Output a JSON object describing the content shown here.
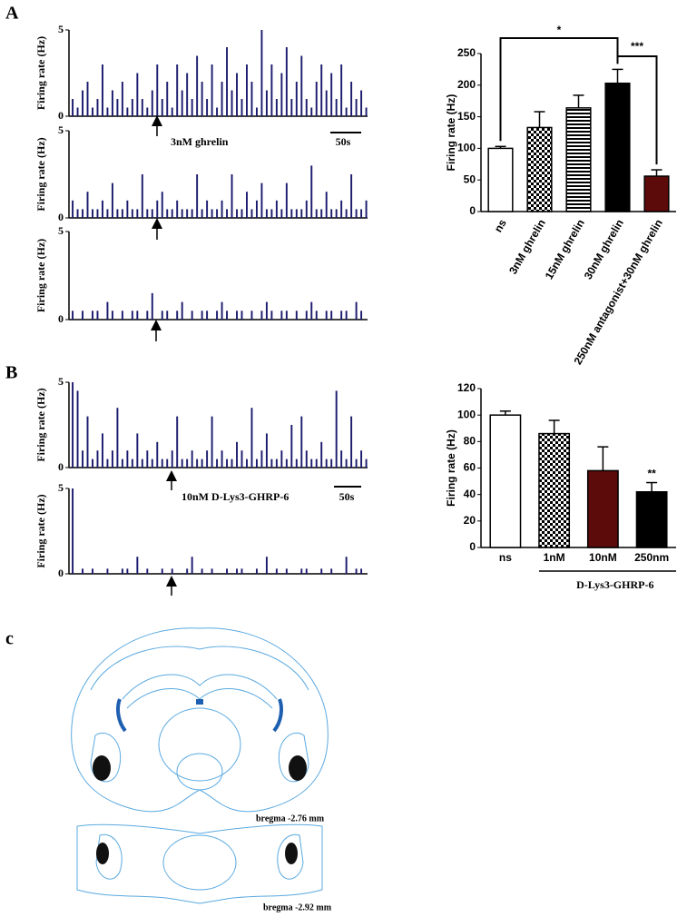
{
  "chart_data": [
    {
      "type": "rate",
      "ylabel": "Firing rate (Hz)",
      "ylim": [
        0,
        5
      ],
      "yticks": [
        0,
        5
      ],
      "color": "#1b1b6e",
      "annotations": [
        "3nM ghrelin",
        "50s"
      ],
      "values": [
        1,
        0.5,
        1.5,
        2,
        0.5,
        1,
        3,
        0.5,
        1.5,
        1,
        2,
        0.5,
        1,
        2.5,
        1,
        0.5,
        1.5,
        3,
        1,
        2,
        0.5,
        3,
        1.5,
        2.5,
        1,
        3.5,
        2,
        1,
        3,
        0.5,
        2,
        4,
        1.5,
        2.5,
        1,
        3,
        2,
        0.5,
        5,
        1.5,
        3,
        1,
        2.5,
        4,
        1,
        2,
        3.5,
        1,
        0.5,
        2,
        3,
        1.5,
        2.5,
        1,
        3,
        0.5,
        2,
        1,
        1.5,
        0.5
      ]
    },
    {
      "type": "rate",
      "ylabel": "Firing rate (Hz)",
      "ylim": [
        0,
        5
      ],
      "yticks": [
        0,
        5
      ],
      "color": "#1b1b6e",
      "values": [
        1,
        0.5,
        0.5,
        1.5,
        0.5,
        0.5,
        1,
        0.5,
        2,
        0.5,
        0.5,
        1,
        0.5,
        0.5,
        2.5,
        0.5,
        0.5,
        1,
        1.5,
        0.5,
        0.5,
        1,
        0.5,
        0.5,
        0.5,
        2.5,
        0.5,
        1,
        0.5,
        0.5,
        1,
        0.5,
        2.5,
        0.5,
        0.5,
        1.5,
        0.5,
        1,
        2,
        0.5,
        0.5,
        1,
        0.5,
        2,
        0.5,
        0.5,
        0.5,
        1,
        3,
        0.5,
        0.5,
        1.5,
        0.5,
        0.5,
        1,
        0.5,
        2.5,
        0.5,
        0.5,
        1
      ]
    },
    {
      "type": "rate",
      "ylabel": "Firing rate (Hz)",
      "ylim": [
        0,
        5
      ],
      "yticks": [
        0,
        5
      ],
      "color": "#1b1b6e",
      "values": [
        0.5,
        0,
        0.5,
        0,
        0.5,
        0.5,
        0,
        1,
        0.5,
        0,
        0.5,
        0,
        0.5,
        0.5,
        0,
        0.5,
        1.5,
        0,
        0.5,
        0.5,
        0,
        0.5,
        1,
        0,
        0.5,
        0,
        0.5,
        0.5,
        0,
        0.5,
        1,
        0.5,
        0,
        0.5,
        0.5,
        0,
        0.5,
        0,
        0.5,
        1,
        0.5,
        0,
        0.5,
        0.5,
        0,
        0.5,
        0,
        0.5,
        1,
        0.5,
        0,
        0.5,
        0.5,
        0,
        0.5,
        0.5,
        0,
        1,
        0.5,
        0
      ]
    },
    {
      "type": "bar",
      "ylabel": "Firing rate (Hz)",
      "ylim": [
        0,
        250
      ],
      "yticks": [
        0,
        50,
        100,
        150,
        200,
        250
      ],
      "categories": [
        "ns",
        "3nM ghrelin",
        "15nM ghrelin",
        "30nM ghrelin",
        "250nM antagonist+30nM ghrelin"
      ],
      "values": [
        100,
        133,
        164,
        203,
        56
      ],
      "errors": [
        3,
        25,
        20,
        22,
        10
      ],
      "fills": [
        "#ffffff",
        "checker",
        "hstripe",
        "#000000",
        "#5c0a0a"
      ],
      "annotations": [
        "*",
        "***"
      ]
    },
    {
      "type": "rate",
      "ylabel": "Firing rate (Hz)",
      "ylim": [
        0,
        5
      ],
      "yticks": [
        0,
        5
      ],
      "color": "#1b1b6e",
      "annotations": [
        "10nM D-Lys3-GHRP-6",
        "50s"
      ],
      "values": [
        5,
        4.5,
        1,
        3,
        0.5,
        1,
        2,
        0.5,
        1,
        3.5,
        0.5,
        1,
        0.5,
        2,
        0.5,
        1,
        0.5,
        1.5,
        0.5,
        0.5,
        1,
        3,
        0.5,
        0.5,
        1,
        0.5,
        0.5,
        1,
        3,
        0.5,
        1,
        0.5,
        0.5,
        1.5,
        1,
        0.5,
        3.5,
        0.5,
        1,
        2,
        0.5,
        0.5,
        1,
        0.5,
        2.5,
        0.5,
        3,
        1,
        0.5,
        0.5,
        1.5,
        0.5,
        0.5,
        4.5,
        1,
        0.5,
        3,
        0.5,
        1,
        0.5
      ]
    },
    {
      "type": "rate",
      "ylabel": "Firing rate (Hz)",
      "ylim": [
        0,
        5
      ],
      "yticks": [
        0,
        5
      ],
      "color": "#1b1b6e",
      "values": [
        5,
        0,
        0.3,
        0,
        0.3,
        0,
        0,
        0.3,
        0,
        0,
        0.3,
        0.3,
        0,
        1,
        0,
        0.3,
        0,
        0,
        0.3,
        0,
        0.3,
        0,
        0,
        0.3,
        1,
        0,
        0.3,
        0,
        0.3,
        0,
        0,
        0.3,
        0,
        0.3,
        0.3,
        0,
        0,
        0.3,
        0,
        1,
        0,
        0.3,
        0,
        0.3,
        0,
        0,
        0.3,
        0.3,
        0,
        0,
        0.3,
        0,
        0.3,
        0,
        0,
        1,
        0,
        0.3,
        0.3,
        0
      ]
    },
    {
      "type": "bar",
      "ylabel": "Firing rate (Hz)",
      "ylim": [
        0,
        120
      ],
      "yticks": [
        0,
        20,
        40,
        60,
        80,
        100,
        120
      ],
      "categories": [
        "ns",
        "1nM",
        "10nM",
        "250nm"
      ],
      "values": [
        100,
        86,
        58,
        42
      ],
      "errors": [
        3,
        10,
        18,
        7
      ],
      "fills": [
        "#ffffff",
        "checker",
        "#5c0a0a",
        "#000000"
      ],
      "annotations": [
        "**"
      ],
      "group_label": "D-Lys3-GHRP-6"
    }
  ],
  "figure": {
    "panel_labels": [
      "A",
      "B",
      "c"
    ],
    "atlas_labels": [
      "bregma -2.76 mm",
      "bregma -2.92 mm"
    ]
  }
}
